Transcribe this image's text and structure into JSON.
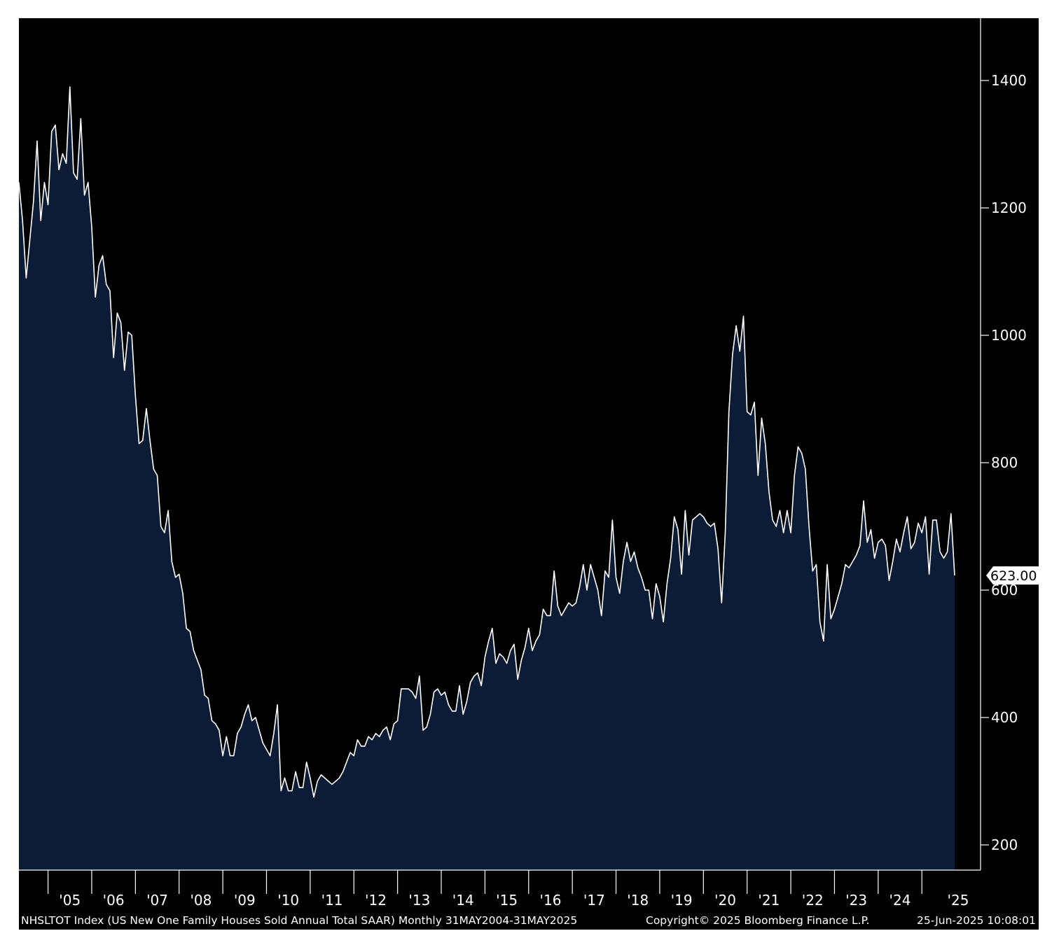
{
  "footer": {
    "description": "NHSLTOT Index (US New One Family Houses Sold Annual Total SAAR)  Monthly 31MAY2004-31MAY2025",
    "copyright": "Copyright© 2025 Bloomberg Finance L.P.",
    "timestamp": "25-Jun-2025 10:08:01"
  },
  "colors": {
    "background": "#000000",
    "area_fill": "#0d1c36",
    "line": "#ffffff",
    "last_value_box": "#ffffff"
  },
  "chart_data": {
    "type": "area",
    "title": "",
    "xlabel": "",
    "ylabel": "",
    "frequency": "Monthly",
    "x_start": "2004-05",
    "x_end": "2025-05",
    "y_axis_position": "right",
    "ylim": [
      160,
      1500
    ],
    "y_ticks": [
      200,
      400,
      600,
      800,
      1000,
      1200,
      1400
    ],
    "y_tick_labels": [
      "200",
      "400",
      "600",
      "800",
      "1000",
      "1200",
      "1400"
    ],
    "x_tick_labels": [
      "'05",
      "'06",
      "'07",
      "'08",
      "'09",
      "'10",
      "'11",
      "'12",
      "'13",
      "'14",
      "'15",
      "'16",
      "'17",
      "'18",
      "'19",
      "'20",
      "'21",
      "'22",
      "'23",
      "'24",
      "'25"
    ],
    "last_value": 623.0,
    "last_value_label": "623.00",
    "grid": false,
    "legend": "none",
    "series": [
      {
        "values": [
          1240,
          1180,
          1090,
          1150,
          1210,
          1305,
          1180,
          1240,
          1205,
          1320,
          1330,
          1260,
          1285,
          1270,
          1390,
          1255,
          1245,
          1340,
          1220,
          1240,
          1170,
          1060,
          1110,
          1125,
          1080,
          1070,
          965,
          1035,
          1020,
          945,
          1005,
          1000,
          905,
          830,
          835,
          885,
          835,
          790,
          780,
          700,
          690,
          725,
          645,
          620,
          625,
          595,
          540,
          535,
          505,
          490,
          475,
          435,
          430,
          395,
          390,
          380,
          340,
          370,
          340,
          340,
          375,
          385,
          405,
          420,
          395,
          400,
          380,
          360,
          350,
          340,
          375,
          420,
          285,
          305,
          285,
          285,
          315,
          290,
          290,
          330,
          305,
          275,
          300,
          310,
          305,
          300,
          295,
          300,
          305,
          315,
          330,
          345,
          340,
          365,
          355,
          355,
          370,
          365,
          375,
          370,
          380,
          385,
          365,
          390,
          395,
          445,
          445,
          445,
          440,
          430,
          465,
          380,
          385,
          405,
          440,
          445,
          435,
          440,
          420,
          410,
          410,
          450,
          405,
          425,
          455,
          465,
          470,
          450,
          495,
          520,
          540,
          485,
          500,
          495,
          485,
          505,
          515,
          460,
          490,
          510,
          540,
          505,
          520,
          530,
          570,
          560,
          560,
          630,
          575,
          560,
          570,
          580,
          575,
          580,
          605,
          640,
          600,
          640,
          620,
          600,
          560,
          630,
          620,
          710,
          620,
          595,
          645,
          675,
          645,
          660,
          635,
          620,
          600,
          600,
          555,
          610,
          590,
          550,
          610,
          650,
          715,
          695,
          625,
          725,
          655,
          710,
          715,
          720,
          715,
          705,
          700,
          705,
          665,
          580,
          690,
          880,
          970,
          1015,
          975,
          1030,
          880,
          875,
          895,
          780,
          870,
          830,
          755,
          710,
          700,
          725,
          690,
          725,
          690,
          780,
          825,
          815,
          790,
          700,
          630,
          640,
          550,
          520,
          640,
          555,
          570,
          590,
          610,
          640,
          635,
          645,
          655,
          670,
          740,
          675,
          695,
          650,
          675,
          680,
          670,
          615,
          645,
          680,
          660,
          690,
          715,
          665,
          675,
          705,
          690,
          715,
          625,
          710,
          710,
          660,
          650,
          660,
          720,
          623
        ]
      }
    ]
  }
}
